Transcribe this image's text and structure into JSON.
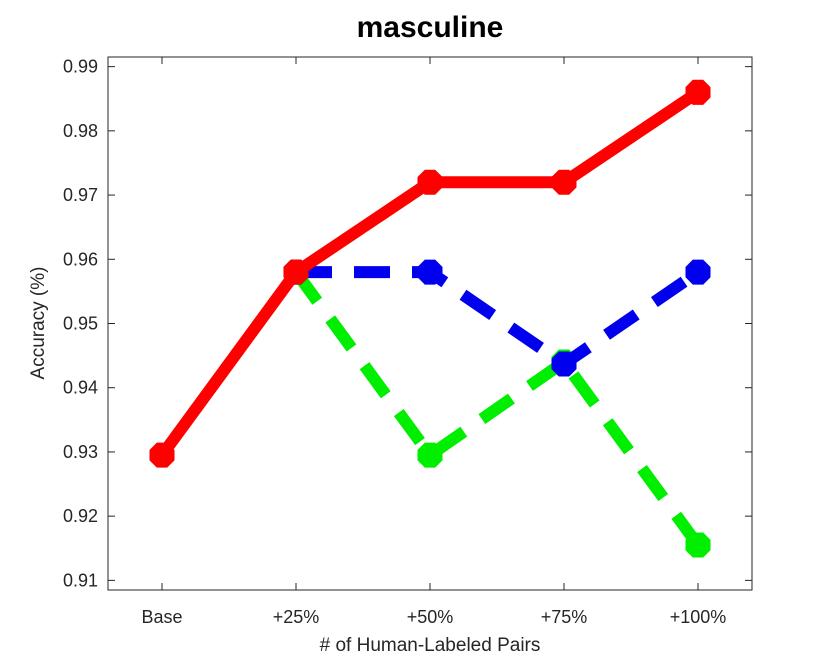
{
  "chart_data": {
    "type": "line",
    "title": "masculine",
    "xlabel": "# of Human-Labeled Pairs",
    "ylabel": "Accuracy (%)",
    "categories": [
      "Base",
      "+25%",
      "+50%",
      "+75%",
      "+100%"
    ],
    "ylim": [
      0.9085,
      0.9915
    ],
    "yticks": [
      0.91,
      0.92,
      0.93,
      0.94,
      0.95,
      0.96,
      0.97,
      0.98,
      0.99
    ],
    "ytick_labels": [
      "0.91",
      "0.92",
      "0.93",
      "0.94",
      "0.95",
      "0.96",
      "0.97",
      "0.98",
      "0.99"
    ],
    "grid": false,
    "series": [
      {
        "color": "#00ee00",
        "dashed": true,
        "values": [
          null,
          0.958,
          0.9295,
          0.944,
          0.9155
        ]
      },
      {
        "color": "#0000ee",
        "dashed": true,
        "values": [
          null,
          0.958,
          0.958,
          0.9437,
          0.958
        ]
      },
      {
        "color": "#ff0000",
        "dashed": false,
        "values": [
          0.9295,
          0.958,
          0.972,
          0.972,
          0.986
        ]
      }
    ]
  }
}
